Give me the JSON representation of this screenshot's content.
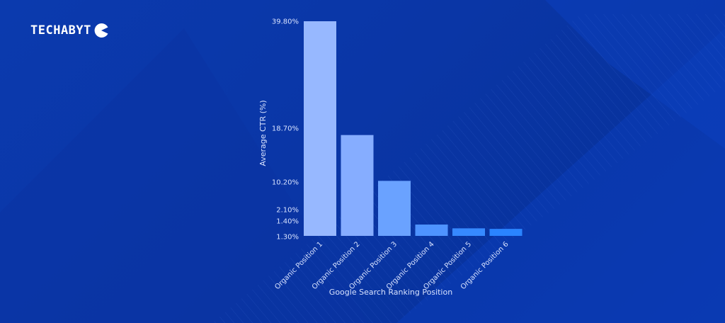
{
  "brand": {
    "name": "TECHABYT",
    "icon": "pacman-logo-icon"
  },
  "chart_data": {
    "type": "bar",
    "categories": [
      "Organic Position 1",
      "Organic Position 2",
      "Organic Position 3",
      "Organic Position 4",
      "Organic Position 5",
      "Organic Position 6"
    ],
    "series": [
      {
        "values": [
          39.8,
          18.7,
          10.2,
          2.1,
          1.4,
          1.3
        ]
      }
    ],
    "ytick_labels": [
      "39.80%",
      "18.70%",
      "10.20%",
      "2.10%",
      "1.40%",
      "1.30%"
    ],
    "title": "",
    "xlabel": "Google Search Ranking Position",
    "ylabel": "Average CTR (%)",
    "grid": false,
    "legend": "none",
    "bar_colors": [
      "#97b8ff",
      "#86adff",
      "#6aa2ff",
      "#4e93ff",
      "#3689ff",
      "#2a84ff"
    ]
  }
}
